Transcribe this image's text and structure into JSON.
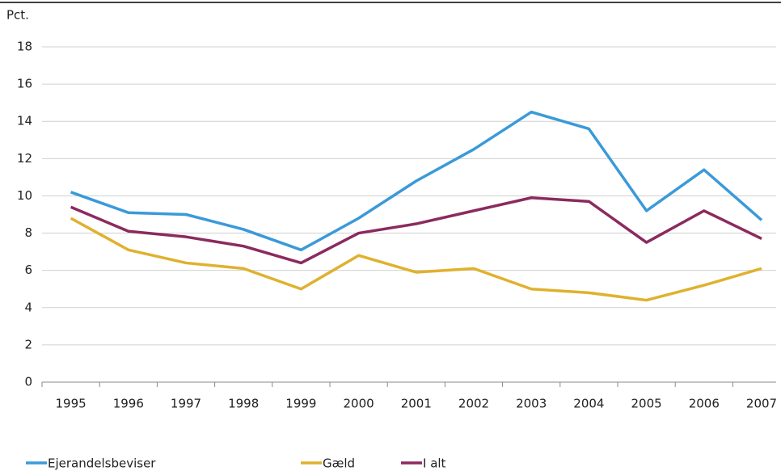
{
  "chart_data": {
    "type": "line",
    "y_label": "Pct.",
    "categories": [
      "1995",
      "1996",
      "1997",
      "1998",
      "1999",
      "2000",
      "2001",
      "2002",
      "2003",
      "2004",
      "2005",
      "2006",
      "2007"
    ],
    "series": [
      {
        "name": "Ejerandelsbeviser",
        "color": "#3a9ad9",
        "values": [
          10.2,
          9.1,
          9.0,
          8.2,
          7.1,
          8.8,
          10.8,
          12.5,
          14.5,
          13.6,
          9.2,
          11.4,
          8.7
        ]
      },
      {
        "name": "Gæld",
        "color": "#e0b12e",
        "values": [
          8.8,
          7.1,
          6.4,
          6.1,
          5.0,
          6.8,
          5.9,
          6.1,
          5.0,
          4.8,
          4.4,
          5.2,
          6.1
        ]
      },
      {
        "name": "I alt",
        "color": "#8b2a5e",
        "values": [
          9.4,
          8.1,
          7.8,
          7.3,
          6.4,
          8.0,
          8.5,
          9.2,
          9.9,
          9.7,
          7.5,
          9.2,
          7.7
        ]
      }
    ],
    "ylim": [
      0,
      18
    ],
    "yticks": [
      0,
      2,
      4,
      6,
      8,
      10,
      12,
      14,
      16,
      18
    ],
    "grid": true
  }
}
